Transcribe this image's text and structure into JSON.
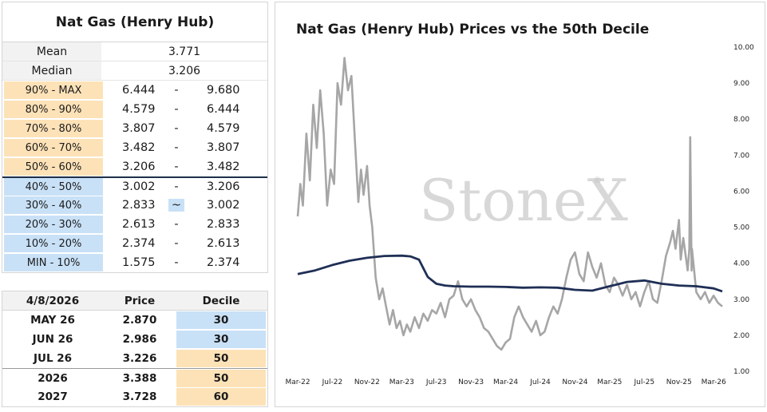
{
  "summary": {
    "title": "Nat Gas (Henry Hub)",
    "mean_label": "Mean",
    "mean_value": "3.771",
    "median_label": "Median",
    "median_value": "3.206",
    "deciles": [
      {
        "label": "90% - MAX",
        "low": "6.444",
        "sep": "-",
        "high": "9.680",
        "band": "hi"
      },
      {
        "label": "80% - 90%",
        "low": "4.579",
        "sep": "-",
        "high": "6.444",
        "band": "hi"
      },
      {
        "label": "70% - 80%",
        "low": "3.807",
        "sep": "-",
        "high": "4.579",
        "band": "hi"
      },
      {
        "label": "60% - 70%",
        "low": "3.482",
        "sep": "-",
        "high": "3.807",
        "band": "hi"
      },
      {
        "label": "50% - 60%",
        "low": "3.206",
        "sep": "-",
        "high": "3.482",
        "band": "hi"
      },
      {
        "label": "40% - 50%",
        "low": "3.002",
        "sep": "-",
        "high": "3.206",
        "band": "lo"
      },
      {
        "label": "30% - 40%",
        "low": "2.833",
        "sep": "~",
        "high": "3.002",
        "band": "lo"
      },
      {
        "label": "20% - 30%",
        "low": "2.613",
        "sep": "-",
        "high": "2.833",
        "band": "lo"
      },
      {
        "label": "10% - 20%",
        "low": "2.374",
        "sep": "-",
        "high": "2.613",
        "band": "lo"
      },
      {
        "label": "MIN - 10%",
        "low": "1.575",
        "sep": "-",
        "high": "2.374",
        "band": "lo"
      }
    ]
  },
  "contracts": {
    "headers": [
      "4/8/2026",
      "Price",
      "Decile"
    ],
    "rows": [
      {
        "name": "MAY 26",
        "price": "2.870",
        "decile": "30",
        "band": "lo"
      },
      {
        "name": "JUN 26",
        "price": "2.986",
        "decile": "30",
        "band": "lo"
      },
      {
        "name": "JUL 26",
        "price": "3.226",
        "decile": "50",
        "band": "hi"
      },
      {
        "name": "2026",
        "price": "3.388",
        "decile": "50",
        "band": "hi"
      },
      {
        "name": "2027",
        "price": "3.728",
        "decile": "60",
        "band": "hi"
      }
    ]
  },
  "colors": {
    "price_line": "#a6a6a6",
    "decile_line": "#1f2f55",
    "upper_band": "#fde2b8",
    "lower_band": "#c9e1f7"
  },
  "watermark": "StoneX",
  "chart_data": {
    "type": "line",
    "title": "Nat Gas (Henry Hub) Prices vs the 50th Decile",
    "x_ticks": [
      "Mar-22",
      "Jul-22",
      "Nov-22",
      "Mar-23",
      "Jul-23",
      "Nov-23",
      "Mar-24",
      "Jul-24",
      "Nov-24",
      "Mar-25",
      "Jul-25",
      "Nov-25",
      "Mar-26"
    ],
    "y_ticks": [
      "10.00",
      "9.00",
      "8.00",
      "7.00",
      "6.00",
      "5.00",
      "4.00",
      "3.00",
      "2.00",
      "1.00"
    ],
    "ylim": [
      1,
      10
    ],
    "x_range_months": [
      0,
      49
    ],
    "grid": false,
    "series": [
      {
        "style": "price",
        "x": [
          0,
          0.3,
          0.6,
          1,
          1.4,
          1.8,
          2.2,
          2.6,
          3,
          3.4,
          3.8,
          4.2,
          4.6,
          5,
          5.4,
          5.8,
          6.2,
          6.6,
          7,
          7.3,
          7.6,
          8,
          8.3,
          8.6,
          9,
          9.4,
          9.8,
          10.2,
          10.6,
          11,
          11.4,
          11.8,
          12.2,
          12.6,
          13,
          13.5,
          14,
          14.5,
          15,
          15.5,
          16,
          16.5,
          17,
          17.5,
          18,
          18.5,
          19,
          19.5,
          20,
          20.5,
          21,
          21.5,
          22,
          22.5,
          23,
          23.5,
          24,
          24.5,
          25,
          25.5,
          26,
          26.5,
          27,
          27.5,
          28,
          28.5,
          29,
          29.5,
          30,
          30.5,
          31,
          31.5,
          32,
          32.5,
          33,
          33.5,
          34,
          34.5,
          35,
          35.5,
          36,
          36.5,
          37,
          37.5,
          38,
          38.5,
          39,
          39.5,
          40,
          40.5,
          41,
          41.5,
          42,
          42.5,
          43,
          43.3,
          43.6,
          43.8,
          44,
          44.2,
          44.5,
          45,
          45.5,
          46,
          46.5,
          47,
          47.5,
          48,
          48.5,
          49
        ],
        "y": [
          5.3,
          6.2,
          5.6,
          7.6,
          6.3,
          8.4,
          7.2,
          8.8,
          7.6,
          5.6,
          6.6,
          6.2,
          9.0,
          8.4,
          9.7,
          8.8,
          9.2,
          7.4,
          5.7,
          6.6,
          5.9,
          6.7,
          5.6,
          5.0,
          3.6,
          3.0,
          3.3,
          2.8,
          2.3,
          2.7,
          2.2,
          2.4,
          2.0,
          2.3,
          2.1,
          2.5,
          2.2,
          2.6,
          2.4,
          2.7,
          2.6,
          2.9,
          2.5,
          3.0,
          3.1,
          3.5,
          3.0,
          2.8,
          3.0,
          2.7,
          2.5,
          2.2,
          2.1,
          1.9,
          1.7,
          1.6,
          1.8,
          1.9,
          2.5,
          2.8,
          2.5,
          2.3,
          2.1,
          2.4,
          2.0,
          2.1,
          2.5,
          2.8,
          2.6,
          3.0,
          3.6,
          4.1,
          4.3,
          3.7,
          3.5,
          4.3,
          3.9,
          3.6,
          4.0,
          3.4,
          3.2,
          3.6,
          3.4,
          3.1,
          3.4,
          3.0,
          3.2,
          2.8,
          3.2,
          3.5,
          3.0,
          2.9,
          3.5,
          4.2,
          4.6,
          4.9,
          4.4,
          4.8,
          5.2,
          4.1,
          4.7,
          3.8,
          4.4,
          3.2,
          3.0,
          3.2,
          2.9,
          3.1,
          2.9,
          2.8
        ],
        "spike": {
          "x": 45.3,
          "y": 7.5
        }
      },
      {
        "style": "decile",
        "x": [
          0,
          2,
          4,
          6,
          8,
          10,
          12,
          13,
          14,
          15,
          16,
          17,
          18,
          20,
          22,
          24,
          26,
          28,
          30,
          32,
          34,
          36,
          38,
          40,
          42,
          44,
          46,
          48,
          49
        ],
        "y": [
          3.7,
          3.8,
          3.95,
          4.07,
          4.15,
          4.2,
          4.21,
          4.19,
          4.1,
          3.62,
          3.43,
          3.38,
          3.36,
          3.35,
          3.35,
          3.34,
          3.32,
          3.33,
          3.32,
          3.26,
          3.24,
          3.36,
          3.48,
          3.52,
          3.43,
          3.38,
          3.36,
          3.3,
          3.22
        ]
      }
    ]
  }
}
